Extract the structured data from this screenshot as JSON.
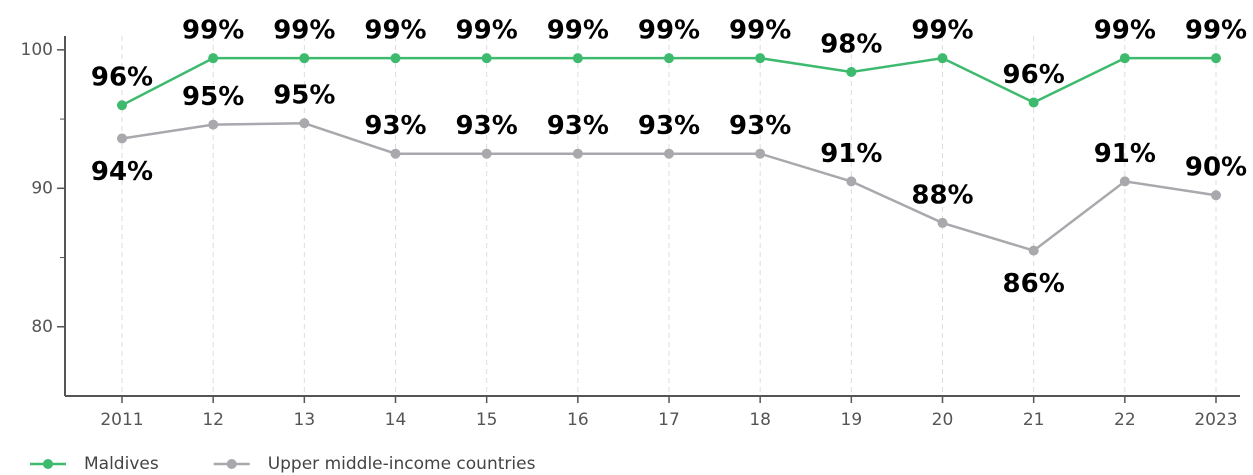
{
  "chart_data": {
    "type": "line",
    "categories": [
      "2011",
      "12",
      "13",
      "14",
      "15",
      "16",
      "17",
      "18",
      "19",
      "20",
      "21",
      "22",
      "2023"
    ],
    "series": [
      {
        "name": "Maldives",
        "color": "#3dba6e",
        "values": [
          96.0,
          99.4,
          99.4,
          99.4,
          99.4,
          99.4,
          99.4,
          99.4,
          98.4,
          99.4,
          96.2,
          99.4,
          99.4
        ],
        "value_labels": [
          "96%",
          "99%",
          "99%",
          "99%",
          "99%",
          "99%",
          "99%",
          "99%",
          "98%",
          "99%",
          "96%",
          "99%",
          "99%"
        ]
      },
      {
        "name": "Upper middle-income countries",
        "color": "#a8a8ad",
        "values": [
          93.6,
          94.6,
          94.7,
          92.5,
          92.5,
          92.5,
          92.5,
          92.5,
          90.5,
          87.5,
          85.5,
          90.5,
          89.5
        ],
        "value_labels": [
          "94%",
          "95%",
          "95%",
          "93%",
          "93%",
          "93%",
          "93%",
          "93%",
          "91%",
          "88%",
          "86%",
          "91%",
          "90%"
        ]
      }
    ],
    "ylim": [
      75,
      101
    ],
    "yticks": [
      80,
      90,
      100
    ],
    "yminorticks": [
      85,
      95
    ],
    "grid": "x",
    "legend": "bottom-left"
  }
}
